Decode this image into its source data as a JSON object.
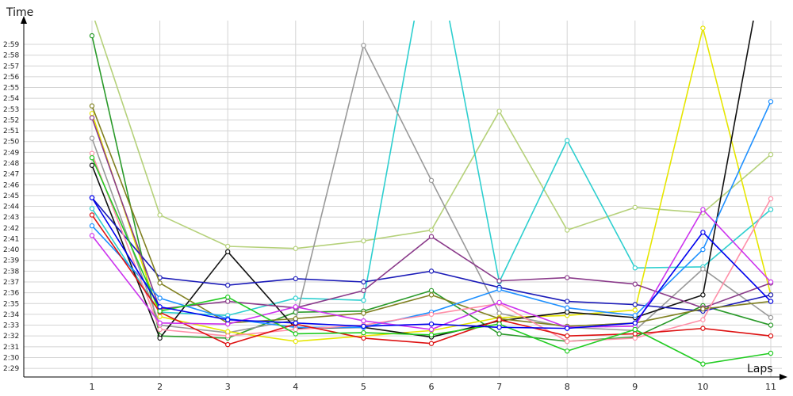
{
  "chart_data": {
    "type": "line",
    "ylabel": "Time",
    "xlabel": "Laps",
    "x": [
      1,
      2,
      3,
      4,
      5,
      6,
      7,
      8,
      9,
      10,
      11
    ],
    "y_tick_labels": [
      "2:29",
      "2:30",
      "2:31",
      "2:32",
      "2:33",
      "2:34",
      "2:35",
      "2:36",
      "2:37",
      "2:38",
      "2:39",
      "2:40",
      "2:41",
      "2:42",
      "2:43",
      "2:44",
      "2:45",
      "2:46",
      "2:47",
      "2:48",
      "2:49",
      "2:50",
      "2:51",
      "2:52",
      "2:53",
      "2:54",
      "2:55",
      "2:56",
      "2:57",
      "2:58",
      "2:59"
    ],
    "ylim": [
      148.2,
      181.2
    ],
    "grid": true,
    "series": [
      {
        "color": "#b5d17a",
        "values": [
          182,
          163.2,
          160.3,
          160.1,
          160.8,
          161.8,
          172.8,
          161.8,
          163.9,
          163.4,
          168.8
        ]
      },
      {
        "color": "#2a9a2a",
        "values": [
          179.8,
          152,
          151.8,
          154.2,
          154.3,
          156.2,
          152.2,
          151.5,
          151.9,
          154.8,
          153
        ]
      },
      {
        "color": "#2ecfcf",
        "values": [
          163.8,
          154.2,
          153.9,
          155.5,
          155.3,
          190,
          157,
          170.1,
          158.3,
          158.4,
          163.7
        ]
      },
      {
        "color": "#999999",
        "values": [
          170.3,
          153,
          152.3,
          153.5,
          178.9,
          166.4,
          154.1,
          152.8,
          152.5,
          158.2,
          153.7
        ]
      },
      {
        "color": "#e6e600",
        "values": [
          172.6,
          153.8,
          152.4,
          151.5,
          152,
          152.5,
          153.7,
          153.9,
          154.4,
          180.5,
          155.8
        ]
      },
      {
        "color": "#111111",
        "values": [
          167.8,
          151.8,
          159.8,
          152.7,
          152.8,
          151.9,
          153.4,
          154.2,
          153.7,
          155.8,
          190
        ]
      },
      {
        "color": "#1a1ab8",
        "values": [
          164.8,
          157.4,
          156.7,
          157.3,
          157,
          158,
          156.5,
          155.2,
          154.9,
          154.3,
          155.8
        ]
      },
      {
        "color": "#8a3a8a",
        "values": [
          172.2,
          154.5,
          155.2,
          154.6,
          156.2,
          161.2,
          157.1,
          157.4,
          156.8,
          154.6,
          156.9
        ]
      },
      {
        "color": "#808020",
        "values": [
          173.3,
          156.9,
          153.2,
          153.6,
          154.1,
          155.8,
          153.6,
          152.9,
          153.2,
          154.5,
          155.2
        ]
      },
      {
        "color": "#1e90ff",
        "values": [
          162.2,
          155.5,
          153.6,
          152.8,
          152.8,
          154.2,
          156.3,
          154.6,
          153.9,
          160,
          173.7
        ]
      },
      {
        "color": "#ff8fa8",
        "values": [
          168.9,
          152.6,
          152,
          152.6,
          153,
          154,
          155,
          151.5,
          151.8,
          153.5,
          164.7
        ]
      },
      {
        "color": "#dd1111",
        "values": [
          163.2,
          154.2,
          151.2,
          153.1,
          151.8,
          151.3,
          153.5,
          152,
          152.2,
          152.7,
          152
        ]
      },
      {
        "color": "#cc33ee",
        "values": [
          161.3,
          153.2,
          153.1,
          154.7,
          153.4,
          152.6,
          155.1,
          152.8,
          152.9,
          163.7,
          157
        ]
      },
      {
        "color": "#22cc22",
        "values": [
          168.5,
          154.3,
          155.6,
          152.2,
          152.3,
          152.1,
          153.1,
          150.6,
          152.6,
          149.4,
          150.4
        ]
      },
      {
        "color": "#0000ee",
        "values": [
          164.8,
          154.7,
          153.5,
          153.2,
          152.9,
          153.1,
          152.8,
          152.7,
          153.2,
          161.6,
          155.2
        ]
      }
    ]
  }
}
